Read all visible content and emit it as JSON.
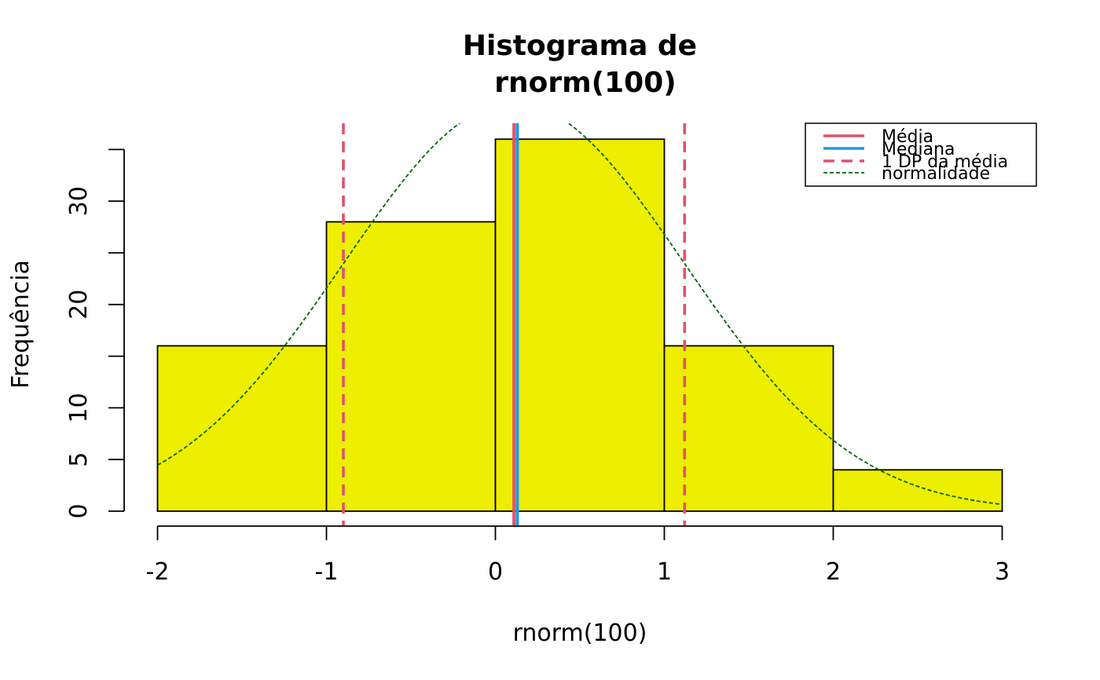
{
  "chart_data": {
    "type": "bar",
    "title_line1": "Histograma de",
    "title_line2": "rnorm(100)",
    "xlabel": "rnorm(100)",
    "ylabel": "Frequência",
    "xlim": [
      -2,
      3
    ],
    "ylim": [
      0,
      35
    ],
    "x_ticks": [
      -2,
      -1,
      0,
      1,
      2,
      3
    ],
    "y_ticks": [
      0,
      5,
      10,
      15,
      20,
      25,
      30,
      35
    ],
    "y_tick_labels": [
      "0",
      "5",
      "10",
      "",
      "20",
      "",
      "30",
      ""
    ],
    "bins": [
      {
        "from": -2,
        "to": -1,
        "count": 16
      },
      {
        "from": -1,
        "to": 0,
        "count": 28
      },
      {
        "from": 0,
        "to": 1,
        "count": 36
      },
      {
        "from": 1,
        "to": 2,
        "count": 16
      },
      {
        "from": 2,
        "to": 3,
        "count": 4
      }
    ],
    "mean": 0.11,
    "median": 0.13,
    "sd_lines": [
      -0.9,
      1.12
    ],
    "normal_curve": {
      "mean": 0.11,
      "sd": 1.01,
      "scale": 100
    },
    "legend": [
      {
        "label": "Média",
        "color": "#DF536B",
        "style": "solid"
      },
      {
        "label": "Mediana",
        "color": "#2297E6",
        "style": "solid"
      },
      {
        "label": "1 DP da média",
        "color": "#DF536B",
        "style": "dashed"
      },
      {
        "label": "normalidade",
        "color": "#006400",
        "style": "dotted"
      }
    ],
    "legend_position": "top-right",
    "colors": {
      "bar_fill": "#EEEE00",
      "mean": "#DF536B",
      "median": "#2297E6",
      "sd": "#DF536B",
      "normal": "#006400"
    }
  }
}
